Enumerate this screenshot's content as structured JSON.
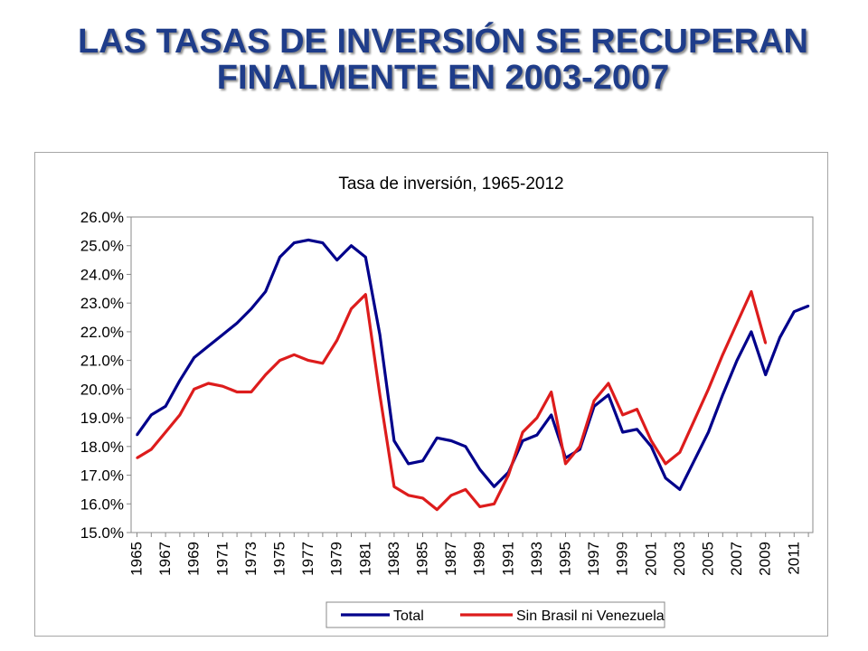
{
  "slide": {
    "title_line1": "LAS TASAS DE INVERSIÓN SE RECUPERAN",
    "title_line2": "FINALMENTE EN 2003-2007"
  },
  "chart_data": {
    "type": "line",
    "title": "Tasa de inversión, 1965-2012",
    "xlabel": "",
    "ylabel": "",
    "ylim": [
      15.0,
      26.0
    ],
    "y_ticks": [
      "15.0%",
      "16.0%",
      "17.0%",
      "18.0%",
      "19.0%",
      "20.0%",
      "21.0%",
      "22.0%",
      "23.0%",
      "24.0%",
      "25.0%",
      "26.0%"
    ],
    "x_ticks": [
      "1965",
      "1967",
      "1969",
      "1971",
      "1973",
      "1975",
      "1977",
      "1979",
      "1981",
      "1983",
      "1985",
      "1987",
      "1989",
      "1991",
      "1993",
      "1995",
      "1997",
      "1999",
      "2001",
      "2003",
      "2005",
      "2007",
      "2009",
      "2011"
    ],
    "x": [
      1965,
      1966,
      1967,
      1968,
      1969,
      1970,
      1971,
      1972,
      1973,
      1974,
      1975,
      1976,
      1977,
      1978,
      1979,
      1980,
      1981,
      1982,
      1983,
      1984,
      1985,
      1986,
      1987,
      1988,
      1989,
      1990,
      1991,
      1992,
      1993,
      1994,
      1995,
      1996,
      1997,
      1998,
      1999,
      2000,
      2001,
      2002,
      2003,
      2004,
      2005,
      2006,
      2007,
      2008,
      2009,
      2010,
      2011,
      2012
    ],
    "grid": false,
    "legend_position": "bottom",
    "series": [
      {
        "name": "Total",
        "color": "#00008b",
        "values": [
          18.4,
          19.1,
          19.4,
          20.3,
          21.1,
          21.5,
          21.9,
          22.3,
          22.8,
          23.4,
          24.6,
          25.1,
          25.2,
          25.1,
          24.5,
          25.0,
          24.6,
          21.9,
          18.2,
          17.4,
          17.5,
          18.3,
          18.2,
          18.0,
          17.2,
          16.6,
          17.1,
          18.2,
          18.4,
          19.1,
          17.6,
          17.9,
          19.4,
          19.8,
          18.5,
          18.6,
          18.0,
          16.9,
          16.5,
          17.5,
          18.5,
          19.8,
          21.0,
          22.0,
          20.5,
          21.8,
          22.7,
          22.9
        ]
      },
      {
        "name": "Sin Brasil ni Venezuela",
        "color": "#dd1c1c",
        "values": [
          17.6,
          17.9,
          18.5,
          19.1,
          20.0,
          20.2,
          20.1,
          19.9,
          19.9,
          20.5,
          21.0,
          21.2,
          21.0,
          20.9,
          21.7,
          22.8,
          23.3,
          19.8,
          16.6,
          16.3,
          16.2,
          15.8,
          16.3,
          16.5,
          15.9,
          16.0,
          17.0,
          18.5,
          19.0,
          19.9,
          17.4,
          18.0,
          19.6,
          20.2,
          19.1,
          19.3,
          18.2,
          17.4,
          17.8,
          18.9,
          20.0,
          21.2,
          22.3,
          23.4,
          21.6,
          null,
          null,
          null
        ]
      }
    ]
  }
}
